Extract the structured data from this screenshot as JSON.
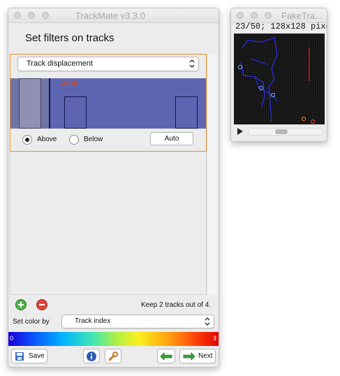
{
  "trackmate": {
    "window_title": "TrackMate v3.3.0",
    "panel_title": "Set filters on tracks",
    "filter": {
      "feature": "Track displacement",
      "threshold_label": "20.10",
      "above_label": "Above",
      "below_label": "Below",
      "selected": "Above",
      "auto_label": "Auto"
    },
    "add_filter_icon": "add-icon",
    "remove_filter_icon": "remove-icon",
    "keep_text": "Keep 2 tracks out of  4.",
    "set_color_label": "Set color by",
    "color_feature": "Track index",
    "colorbar": {
      "min_label": "0",
      "max_label": "3"
    },
    "footer": {
      "save_label": "Save",
      "next_label": "Next"
    },
    "colors": {
      "accent_border": "#e8902c",
      "histogram_bg": "#5d65b3",
      "threshold_text": "#d94a10"
    }
  },
  "image_window": {
    "window_title": "FakeTra...",
    "status": "23/50; 128x128 pixe"
  }
}
